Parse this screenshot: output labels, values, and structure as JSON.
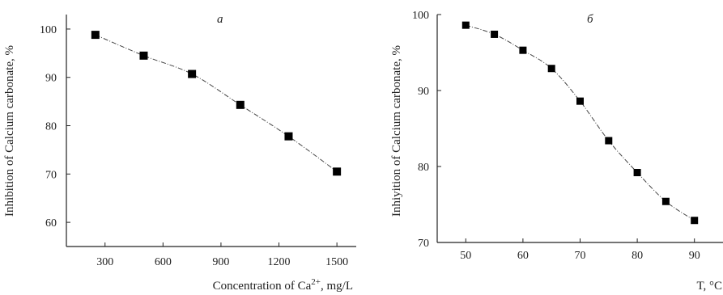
{
  "chart_data": [
    {
      "type": "line",
      "panel_label": "a",
      "xlabel": "Concentration of Ca",
      "xlabel_sup": "2+",
      "xlabel_suffix": ", mg/L",
      "ylabel": "Inhibition of Calcium carbonate, %",
      "xlim": [
        100,
        1600
      ],
      "ylim": [
        55,
        103
      ],
      "xticks": [
        300,
        600,
        900,
        1200,
        1500
      ],
      "yticks": [
        60,
        70,
        80,
        90,
        100
      ],
      "grid": false,
      "marker": "square",
      "series": [
        {
          "x": [
            250,
            500,
            750,
            1000,
            1250,
            1500
          ],
          "y": [
            98.8,
            94.5,
            90.7,
            84.3,
            77.8,
            70.5
          ]
        }
      ]
    },
    {
      "type": "line",
      "panel_label": "б",
      "xlabel": "T, °C",
      "ylabel": "Inhiyition of Calcium carbonate, %",
      "xlim": [
        45,
        95
      ],
      "ylim": [
        70,
        100
      ],
      "xticks": [
        50,
        60,
        70,
        80,
        90
      ],
      "yticks": [
        70,
        80,
        90,
        100
      ],
      "grid": false,
      "marker": "square",
      "series": [
        {
          "x": [
            50,
            55,
            60,
            65,
            70,
            75,
            80,
            85,
            90
          ],
          "y": [
            98.6,
            97.4,
            95.3,
            92.9,
            88.6,
            83.4,
            79.2,
            75.4,
            72.9
          ]
        }
      ]
    }
  ]
}
